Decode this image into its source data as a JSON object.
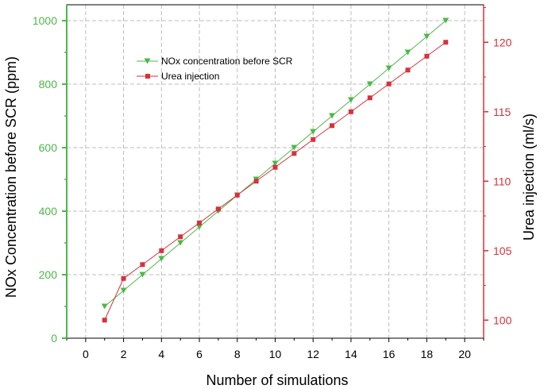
{
  "chart_data": {
    "type": "line",
    "xlabel": "Number of simulations",
    "ylabel_left": "NOx Concentration before SCR (ppm)",
    "ylabel_right": "Urea injection (ml/s)",
    "x_ticks": [
      "0",
      "2",
      "4",
      "6",
      "8",
      "10",
      "12",
      "14",
      "16",
      "18",
      "20"
    ],
    "y_left_ticks": [
      "0",
      "200",
      "400",
      "600",
      "800",
      "1000"
    ],
    "y_right_ticks": [
      "100",
      "105",
      "110",
      "115",
      "120"
    ],
    "xlim": [
      -1,
      21
    ],
    "ylim_left": [
      0,
      1050
    ],
    "ylim_right": [
      98.7,
      122.7
    ],
    "grid": "dashed",
    "legend_position": "upper-left",
    "x": [
      1,
      2,
      3,
      4,
      5,
      6,
      7,
      8,
      9,
      10,
      11,
      12,
      13,
      14,
      15,
      16,
      17,
      18,
      19
    ],
    "series": [
      {
        "name": "NOx concentration before SCR",
        "axis": "left",
        "marker": "triangle-down",
        "color": "#4CB848",
        "values": [
          100,
          150,
          200,
          250,
          300,
          350,
          400,
          450,
          500,
          550,
          600,
          650,
          700,
          750,
          800,
          850,
          900,
          950,
          1000
        ]
      },
      {
        "name": "Urea injection",
        "axis": "right",
        "marker": "square",
        "color": "#D6323C",
        "values": [
          100,
          103,
          104,
          105,
          106,
          107,
          108,
          109,
          110,
          111,
          112,
          113,
          114,
          115,
          116,
          117,
          118,
          119,
          120
        ]
      }
    ],
    "left_axis_color": "#4CB848",
    "right_axis_color": "#D6323C"
  }
}
